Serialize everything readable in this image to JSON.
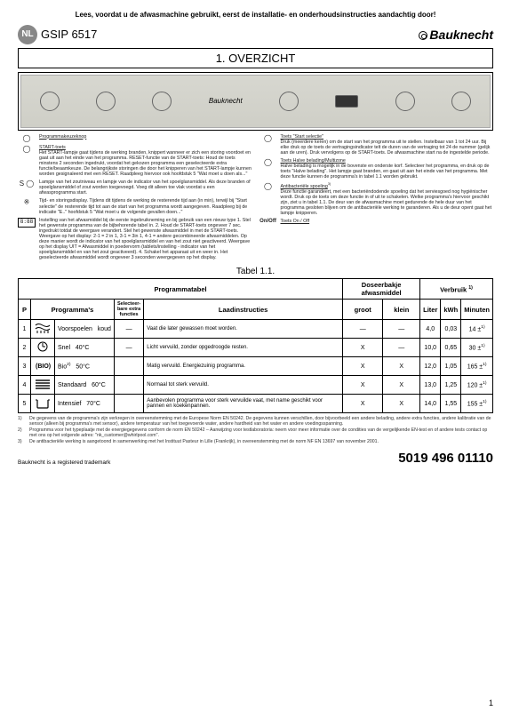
{
  "top_instruction": "Lees, voordat u de afwasmachine gebruikt, eerst de installatie- en onderhoudsinstructies aandachtig door!",
  "country_badge": "NL",
  "model": "GSIP 6517",
  "brand": "Bauknecht",
  "section_title": "1. OVERZICHT",
  "left_column": {
    "i1": {
      "label": "Programmakeuzeknop"
    },
    "i2": {
      "label": "START-toets",
      "body": "Het START-lampje gaat tijdens de werking branden, knippert wanneer er zich een storing voordoet en gaat uit aan het einde van het programma.\nRESET-functie van de START-toets:\nHoud de toets minstens 2 seconden ingedrukt, voordat het gekozen programma een geselecteerde extra functie/beaamkeuze. De belangrijkste storingen die door het knipperen van het START-lampje kunnen worden gesignaleerd met een RESET. Raadpleeg hiervoor ook hoofdstuk 5 \"Wat moet u doen als...\""
    },
    "i3": {
      "ic": "S ◯",
      "body": "Lampje van het zoutniveau en lampje van de indicator van het spoelglansmiddel.\nAls deze branden of spoelglansmiddel of zout worden toegevoegd. Voeg dit alleen toe vlak voordat u een afwasprogramma start."
    },
    "i4": {
      "ic": "※",
      "body": "Tijd- en storingsdisplay.\nTijdens dit tijdens de werking de resterende tijd aan (in min), terwijl bij \"Start selectie\" de resterende tijd tot aan de start van het programma wordt aangegeven.\nRaadpleeg bij de indicatie \"E..\" hoofdstuk 5 \"Wat moet u de volgende gevallen doen...\""
    },
    "i5": {
      "ic": "8:88",
      "body": "Instelling van het afwasmiddel bij de eerste ingebruikneming en bij gebruik van een nieuw type\n1. Stel het gewenste programma van de bijbehorende tabel in.\n2. Houd de START-toets ongeveer 7 sec. ingedrukt totdat de weergave verandert. Stel het gewenste afwasmiddel in met de START-toets.\nWeergave op het display: 2-1 = 2 in 1, 3-1 = 3in 1, 4-1 = andere gecombineerde afwasmiddelen.\nOp deze manier wordt de indicator van het spoelglansmiddel en van het zout niet geactiveerd.\nWeergave op het display UIT = Afwasmiddel in poedervorm (tablets/instelling - indicator van het spoelglansmiddel en van het zout geactiveerd).\n4. Schakel het apparaat uit en weer in. Het geselecteerde afwasmiddel wordt ongeveer 3 seconden weergegeven op het display."
    }
  },
  "right_column": {
    "i1": {
      "label": "Toets \"Start selectie\"",
      "body": "Druk (meerdere keren) om de start van het programma uit te stellen. Instelbaar van 1 tot 24 uur. Bij elke druk op de toets de vertragingsindicator telt de duren van de vertraging tot 24 de nummer (gelijk aan de uren). Druk vervolgens op de START-toets. De afwasmachine start na de ingestelde periode."
    },
    "i2": {
      "label": "Toets Halve belading/Multizone",
      "body": "Halve belading is mogelijk in de bovenste en onderste korf. Selecteer het programma, en druk op de toets \"Halve belading\". Het lampje gaat branden, en gaat uit aan het einde van het programma. Met deze functie kunnen de programma's in tabel 1.1 worden gebruikt."
    },
    "i3": {
      "label": "Antibacteriële spoeling",
      "body": "Deze functie garandeert, met een bacteriëndodende spoeling dat het serviesgoed nog hygiënischer wordt. Druk op de toets om deze functie in of uit te schakelen. Welke programma's hiervoor geschikt zijn, ziet u in tabel 1.1.\nDe deur van de afwasmachine moet gedurende de hele duur van het programma gesloten blijven om de antibacteriële werking te garanderen. Als u de deur opent gaat het lampje knipperen."
    },
    "i4": {
      "ic": "On/Off",
      "label": "Toets On / Off"
    }
  },
  "table_caption": "Tabel 1.1.",
  "table": {
    "headers": {
      "main": "Programmatabel",
      "detergent": "Doseerbakje afwasmiddel",
      "consumption": "Verbruik",
      "consumption_sup": "1)"
    },
    "sub": {
      "p": "P",
      "programs": "Programma's",
      "select": "Selecteer-\nbare extra\nfuncties",
      "load": "Laadinstructies",
      "big": "groot",
      "small": "klein",
      "liter": "Liter",
      "kwh": "kWh",
      "minutes": "Minuten"
    },
    "rows": [
      {
        "n": "1",
        "name": "Voorspoelen",
        "temp": "koud",
        "sel": "—",
        "instr": "Vaat die later gewassen moet worden.",
        "big": "—",
        "small": "—",
        "l": "4,0",
        "kwh": "0,03",
        "min": "14 ±",
        "min_sup": "1)"
      },
      {
        "n": "2",
        "name": "Snel",
        "temp": "40°C",
        "sel": "—",
        "instr": "Licht vervuild, zonder opgedroogde resten.",
        "big": "X",
        "small": "—",
        "l": "10,0",
        "kwh": "0,65",
        "min": "30 ±",
        "min_sup": "1)"
      },
      {
        "n": "3",
        "name": "Bio",
        "name_sup": "2)",
        "temp": "50°C",
        "sel": "",
        "instr": "Matig vervuild. Energiezuinig programma.",
        "big": "X",
        "small": "X",
        "l": "12,0",
        "kwh": "1,05",
        "min": "165 ±",
        "min_sup": "1)"
      },
      {
        "n": "4",
        "name": "Standaard",
        "temp": "60°C",
        "sel": "",
        "instr": "Normaal tot sterk vervuild.",
        "big": "X",
        "small": "X",
        "l": "13,0",
        "kwh": "1,25",
        "min": "120 ±",
        "min_sup": "1)"
      },
      {
        "n": "5",
        "name": "Intensief",
        "temp": "70°C",
        "sel": "",
        "instr": "Aanbevolen programma voor sterk vervuilde vaat, met name geschikt voor pannen en koekenpannen.",
        "big": "X",
        "small": "X",
        "l": "14,0",
        "kwh": "1,55",
        "min": "155 ±",
        "min_sup": "1)"
      }
    ]
  },
  "footnotes": [
    {
      "n": "1)",
      "text": "De gegevens van de programma's zijn verkregen in overeenstemming met de Europese Norm EN 50242. De gegevens kunnen verschillen, door bijvoorbeeld een andere belading, andere extra functies, andere kalibratie van de sensor (alleen bij programma's met sensor), andere temperatuur van het toegevoerde water, andere hardheid van het water en andere voedingsspanning."
    },
    {
      "n": "2)",
      "text": "Programma voor het typeplaatje met de energiegegevens conform de norm EN 50242 – Aanwijzing voor testlaboratoria: neem voor meer informatie over de condities van de vergelijkende EN-test en of andere tests contact op met ons op het volgende adres: \"nk_customer@whirlpool.com\"."
    },
    {
      "n": "3)",
      "text": "De antibacteriële werking is aangetoond in samenwerking met het Instituut Pasteur in Lille (Frankrijk), in overeenstemming met de norm NF EN 13697 van november 2001."
    }
  ],
  "registered": "Bauknecht is a registered trademark",
  "doc_number": "5019 496 01110",
  "page_number": "1"
}
